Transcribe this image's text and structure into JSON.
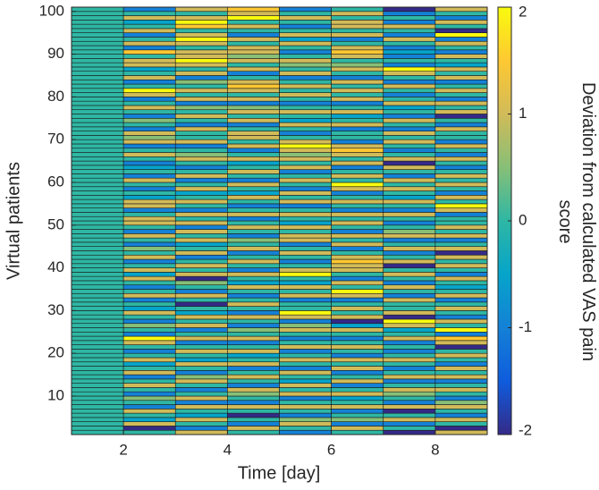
{
  "chart_data": {
    "type": "heatmap",
    "xlabel": "Time [day]",
    "ylabel": "Virtual patients",
    "colorbar_label": "Deviation from calculated VAS pain score",
    "x": [
      1,
      2,
      3,
      4,
      5,
      6,
      7,
      8
    ],
    "y": [
      1,
      2,
      3,
      4,
      5,
      6,
      7,
      8,
      9,
      10,
      11,
      12,
      13,
      14,
      15,
      16,
      17,
      18,
      19,
      20,
      21,
      22,
      23,
      24,
      25,
      26,
      27,
      28,
      29,
      30,
      31,
      32,
      33,
      34,
      35,
      36,
      37,
      38,
      39,
      40,
      41,
      42,
      43,
      44,
      45,
      46,
      47,
      48,
      49,
      50,
      51,
      52,
      53,
      54,
      55,
      56,
      57,
      58,
      59,
      60,
      61,
      62,
      63,
      64,
      65,
      66,
      67,
      68,
      69,
      70,
      71,
      72,
      73,
      74,
      75,
      76,
      77,
      78,
      79,
      80,
      81,
      82,
      83,
      84,
      85,
      86,
      87,
      88,
      89,
      90,
      91,
      92,
      93,
      94,
      95,
      96,
      97,
      98,
      99,
      100
    ],
    "values": [
      [
        0,
        0,
        0,
        0,
        0,
        0,
        0,
        0,
        0,
        0,
        0,
        0,
        0,
        0,
        0,
        0,
        0,
        0,
        0,
        0,
        0,
        0,
        0,
        0,
        0,
        0,
        0,
        0,
        0,
        0,
        0,
        0,
        0,
        0,
        0,
        0,
        0,
        0,
        0,
        0,
        0,
        0,
        0,
        0,
        0,
        0,
        0,
        0,
        0,
        0,
        0,
        0,
        0,
        0,
        0,
        0,
        0,
        0,
        0,
        0,
        0,
        0,
        0,
        0,
        0,
        0,
        0,
        0,
        0,
        0,
        0,
        0,
        0,
        0,
        0,
        0,
        0,
        0,
        0,
        0,
        0,
        0,
        0,
        0,
        0,
        0,
        0,
        0,
        0,
        0,
        0,
        0,
        0,
        0,
        0,
        0,
        0,
        0,
        0,
        0
      ],
      [
        0,
        -2,
        1,
        -0.5,
        0,
        1,
        -1,
        0,
        0.5,
        -1,
        0,
        1,
        0,
        -1,
        1,
        0,
        -0.5,
        1,
        0,
        -1,
        0,
        1,
        2,
        -1,
        0,
        0.5,
        -1,
        0,
        1,
        -0.5,
        0,
        -1,
        1,
        0,
        -1,
        0,
        1,
        -0.5,
        1,
        0,
        -1,
        1,
        0,
        0.5,
        -1,
        0,
        1,
        -1,
        0,
        1,
        1,
        0,
        -1,
        1,
        1,
        -0.5,
        0,
        -1,
        0,
        1,
        -1,
        0,
        -0.5,
        -1,
        0,
        1,
        0,
        -1,
        1,
        0.5,
        1,
        -1,
        0,
        0.5,
        -1,
        0,
        1,
        0,
        -1,
        1,
        2,
        0,
        -1,
        1,
        0,
        -0.5,
        1,
        1,
        0,
        1.5,
        -1,
        1,
        0,
        -1,
        1,
        0,
        -0.5,
        1,
        0,
        -1
      ],
      [
        1,
        -1,
        0,
        1,
        -0.5,
        0,
        1,
        -1,
        1,
        0,
        -1,
        0,
        1,
        0.5,
        -1,
        0,
        1,
        -0.5,
        0,
        1,
        0,
        -1,
        1,
        0,
        -1,
        1,
        0,
        1,
        -0.5,
        0,
        -2,
        0,
        1,
        -1,
        0,
        0.5,
        -2,
        1,
        0,
        1,
        0,
        -1,
        1,
        0,
        -0.5,
        1,
        0,
        1,
        -1,
        1,
        0,
        1,
        -1,
        0,
        1,
        0,
        -0.5,
        1,
        0,
        -1,
        1,
        0,
        -1,
        0,
        1,
        0.5,
        0,
        -1,
        1,
        0,
        0,
        1,
        -1,
        0,
        1,
        0,
        0.5,
        -1,
        1,
        0,
        1,
        0,
        0.5,
        -1,
        1,
        0,
        1,
        2,
        1,
        1,
        0,
        1,
        2,
        1,
        0,
        1.5,
        2,
        1,
        0,
        1
      ],
      [
        0,
        1,
        -1,
        0,
        -2,
        0,
        1,
        -1,
        0,
        0.5,
        1,
        -1,
        0,
        1,
        0,
        -1,
        1,
        0,
        -0.5,
        1,
        0,
        -1,
        1,
        0,
        0.5,
        -1,
        0,
        1,
        -1,
        0,
        1,
        0,
        -1,
        0,
        1,
        -0.5,
        0,
        1,
        -1,
        0,
        1,
        0,
        -1,
        1,
        0,
        0.5,
        -1,
        0,
        1,
        0,
        -1,
        1,
        0,
        -1,
        0,
        1,
        -0.5,
        0,
        1,
        -1,
        0,
        1,
        0,
        -0.5,
        1,
        0,
        -1,
        1,
        0,
        1,
        1,
        0,
        -1,
        1,
        0,
        1,
        0.5,
        -1,
        1,
        0,
        1,
        1.5,
        1,
        0,
        -1,
        1,
        0,
        1,
        0.5,
        1,
        1,
        0,
        1,
        -1,
        0,
        1,
        0,
        2,
        1,
        1.5
      ],
      [
        -1,
        0,
        1,
        0.5,
        -1,
        0,
        1,
        0,
        -1,
        1,
        0,
        1,
        -0.5,
        0,
        1,
        -1,
        0,
        1,
        0,
        -1,
        1,
        0,
        -1,
        0,
        1,
        0.5,
        -1,
        1,
        2,
        0,
        0,
        -1,
        1,
        0,
        1,
        -0.5,
        0,
        2,
        1,
        0,
        -1,
        0,
        1,
        0,
        -1,
        1,
        1,
        0,
        1,
        -0.5,
        0,
        1,
        0,
        -1,
        1,
        0,
        1,
        -1,
        0,
        1,
        0,
        -1,
        1,
        0,
        1,
        0.5,
        1,
        2,
        1,
        0,
        -1,
        0,
        1,
        -0.5,
        0,
        1,
        0,
        -1,
        0,
        1,
        0,
        1,
        0,
        -1,
        1,
        0,
        0.5,
        1,
        0,
        -1,
        0,
        1,
        -0.5,
        1,
        0,
        -1,
        0,
        1,
        0,
        -1
      ],
      [
        0,
        1,
        -1,
        0.5,
        0,
        -1,
        1,
        0,
        -0.5,
        1,
        0,
        -1,
        1,
        0,
        -1,
        1,
        0,
        1,
        -1,
        0,
        1,
        0,
        -1,
        0,
        1,
        -0.5,
        -2,
        1,
        0,
        1,
        0,
        -1,
        1,
        2,
        0,
        1,
        -1,
        0,
        1,
        1,
        1.5,
        1,
        0,
        -1,
        1,
        0,
        1,
        -1,
        0,
        1,
        0,
        1,
        -1,
        0,
        1,
        0,
        -1,
        1,
        2,
        0,
        1,
        0,
        -1,
        1,
        0,
        1,
        1.5,
        1,
        -1,
        0,
        0,
        -1,
        1,
        0,
        -0.5,
        1,
        0,
        -1,
        1,
        0,
        1,
        0,
        1,
        -1,
        0,
        1,
        0.5,
        0,
        1,
        1.5,
        1,
        0,
        -1,
        1,
        0,
        1,
        1,
        0,
        1,
        0
      ],
      [
        -2,
        0,
        -1,
        1,
        0,
        -2,
        1,
        -1,
        0,
        0.5,
        1,
        0,
        -1,
        1,
        0,
        -1,
        0,
        1,
        0,
        -1,
        0,
        -1,
        1,
        0,
        -0.5,
        1,
        2,
        -2,
        1,
        0,
        0,
        1,
        -1,
        0,
        1,
        -1,
        0,
        1,
        0,
        -2,
        1,
        0,
        -1,
        1,
        0,
        -1,
        1,
        0.5,
        0,
        -1,
        0,
        1,
        -1,
        0,
        1,
        -0.5,
        0,
        1,
        0,
        1,
        -1,
        0,
        1,
        -2,
        1,
        0,
        -1,
        0,
        1,
        0,
        1,
        -1,
        0,
        1,
        -1,
        0,
        -0.5,
        1,
        0,
        -1,
        0,
        1,
        -1,
        0,
        1,
        2,
        -1,
        0,
        -1,
        -0.5,
        -1,
        0,
        1,
        -1,
        0,
        1,
        -1,
        0,
        -1,
        -2
      ],
      [
        1,
        -2,
        0,
        1,
        -1,
        0,
        1,
        0.5,
        -1,
        0,
        1,
        0,
        -1,
        1,
        0,
        1,
        -1,
        0,
        1,
        0,
        -2,
        1,
        1.5,
        -1,
        2,
        0,
        1,
        -1,
        0,
        1,
        0,
        -1,
        1,
        0,
        -0.5,
        0,
        1,
        -1,
        0,
        1,
        0,
        1,
        -2,
        1,
        0,
        -1,
        1,
        0,
        1,
        0,
        0,
        -1,
        1,
        2,
        0,
        1,
        -1,
        0,
        1,
        0,
        1,
        0,
        -1,
        0,
        1,
        -1,
        0,
        1,
        -1,
        0,
        0,
        1,
        -1,
        0,
        -2,
        1,
        0,
        1,
        -1,
        0,
        1,
        0,
        -1,
        1,
        0,
        1,
        -0.5,
        0,
        1,
        -1,
        0,
        1,
        -1,
        2,
        -2,
        0,
        1,
        -1,
        0,
        1
      ]
    ],
    "xlim": [
      1,
      9
    ],
    "ylim": [
      1,
      101
    ],
    "xticks": [
      2,
      4,
      6,
      8
    ],
    "yticks": [
      10,
      20,
      30,
      40,
      50,
      60,
      70,
      80,
      90,
      100
    ],
    "clim": [
      -2,
      2
    ],
    "cticks": [
      -2,
      -1,
      0,
      1,
      2
    ],
    "colormap": [
      "#352a87",
      "#0f5cdd",
      "#1481d6",
      "#06a4ca",
      "#2eb7a4",
      "#87bf77",
      "#d1bb59",
      "#fec832",
      "#f9fb0e"
    ]
  }
}
